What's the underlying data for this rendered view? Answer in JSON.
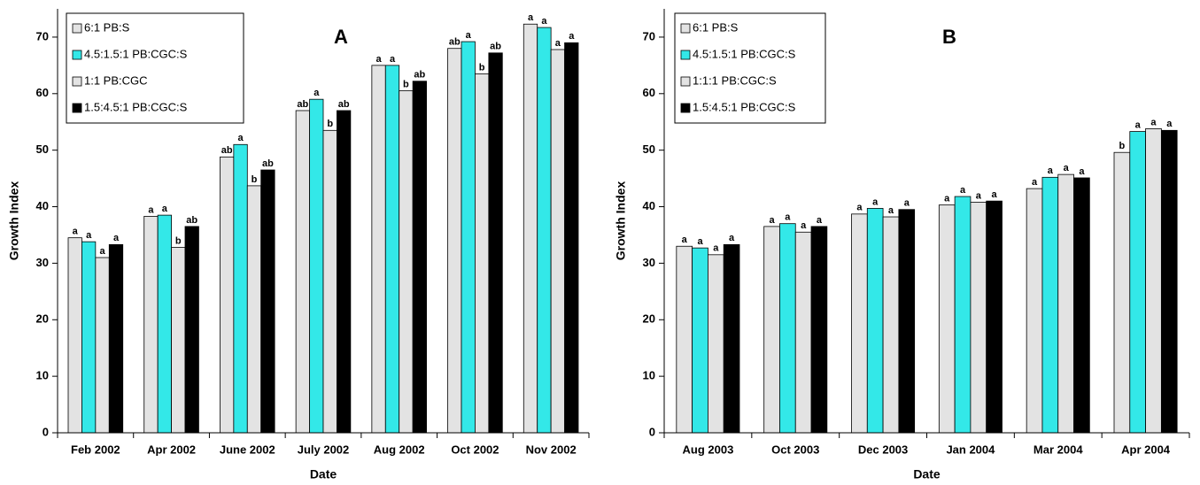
{
  "chart_data": [
    {
      "type": "bar",
      "title": "A",
      "x_label": "Date",
      "y_label": "Growth Index",
      "categories": [
        "Feb 2002",
        "Apr 2002",
        "June 2002",
        "July 2002",
        "Aug 2002",
        "Oct 2002",
        "Nov 2002"
      ],
      "series": [
        {
          "name": "6:1 PB:S",
          "color": "#e3e3e3",
          "values": [
            34.5,
            38.3,
            48.8,
            57,
            65,
            68,
            72.3
          ],
          "letters": [
            "a",
            "a",
            "ab",
            "ab",
            "a",
            "ab",
            "a"
          ]
        },
        {
          "name": "4.5:1.5:1 PB:CGC:S",
          "color": "#33e8e8",
          "values": [
            33.8,
            38.5,
            51,
            59,
            65,
            69.2,
            71.7
          ],
          "letters": [
            "a",
            "a",
            "a",
            "a",
            "a",
            "a",
            "a"
          ]
        },
        {
          "name": "1:1 PB:CGC",
          "color": "#e3e3e3",
          "values": [
            31,
            32.8,
            43.7,
            53.5,
            60.5,
            63.5,
            67.8
          ],
          "letters": [
            "a",
            "b",
            "b",
            "b",
            "b",
            "b",
            "a"
          ]
        },
        {
          "name": "1.5:4.5:1 PB:CGC:S",
          "color": "#000000",
          "values": [
            33.3,
            36.5,
            46.5,
            57,
            62.2,
            67.2,
            69
          ],
          "letters": [
            "a",
            "ab",
            "ab",
            "ab",
            "ab",
            "ab",
            "a"
          ]
        }
      ],
      "ylim": [
        0,
        75
      ],
      "yticks": [
        0,
        10,
        20,
        30,
        40,
        50,
        60,
        70
      ],
      "legend": "upper-left"
    },
    {
      "type": "bar",
      "title": "B",
      "x_label": "Date",
      "y_label": "Growth Index",
      "categories": [
        "Aug 2003",
        "Oct 2003",
        "Dec 2003",
        "Jan 2004",
        "Mar 2004",
        "Apr 2004"
      ],
      "series": [
        {
          "name": "6:1 PB:S",
          "color": "#e3e3e3",
          "values": [
            33,
            36.5,
            38.7,
            40.3,
            43.2,
            49.6
          ],
          "letters": [
            "a",
            "a",
            "a",
            "a",
            "a",
            "b"
          ]
        },
        {
          "name": "4.5:1.5:1 PB:CGC:S",
          "color": "#33e8e8",
          "values": [
            32.7,
            37,
            39.7,
            41.8,
            45.2,
            53.3
          ],
          "letters": [
            "a",
            "a",
            "a",
            "a",
            "a",
            "a"
          ]
        },
        {
          "name": "1:1:1 PB:CGC:S",
          "color": "#e3e3e3",
          "values": [
            31.5,
            35.5,
            38.2,
            40.8,
            45.7,
            53.8
          ],
          "letters": [
            "a",
            "a",
            "a",
            "a",
            "a",
            "a"
          ]
        },
        {
          "name": "1.5:4.5:1 PB:CGC:S",
          "color": "#000000",
          "values": [
            33.3,
            36.5,
            39.5,
            41,
            45.1,
            53.5
          ],
          "letters": [
            "a",
            "a",
            "a",
            "a",
            "a",
            "a"
          ]
        }
      ],
      "ylim": [
        0,
        75
      ],
      "yticks": [
        0,
        10,
        20,
        30,
        40,
        50,
        60,
        70
      ],
      "legend": "upper-left"
    }
  ]
}
